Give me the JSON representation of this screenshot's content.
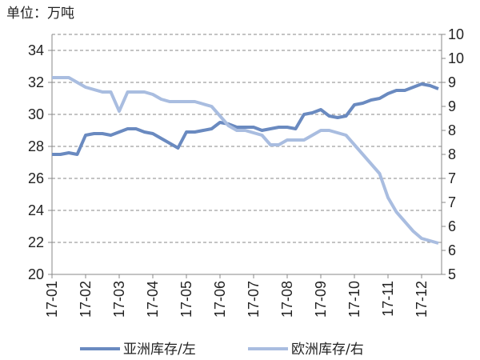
{
  "chart_data": {
    "type": "line",
    "unit_label": "单位：万吨",
    "categories": [
      "17-01",
      null,
      null,
      null,
      "17-02",
      null,
      null,
      null,
      "17-03",
      null,
      null,
      null,
      "17-04",
      null,
      null,
      null,
      "17-05",
      null,
      null,
      null,
      "17-06",
      null,
      null,
      null,
      "17-07",
      null,
      null,
      null,
      "17-08",
      null,
      null,
      null,
      "17-09",
      null,
      null,
      null,
      "17-10",
      null,
      null,
      null,
      "17-11",
      null,
      null,
      null,
      "17-12",
      null,
      null
    ],
    "series": [
      {
        "name": "亚洲库存/左",
        "color": "#6a8ac0",
        "axis": "y",
        "values": [
          27.5,
          27.5,
          27.6,
          27.5,
          28.7,
          28.8,
          28.8,
          28.7,
          28.9,
          29.1,
          29.1,
          28.9,
          28.8,
          28.5,
          28.2,
          27.9,
          28.9,
          28.9,
          29.0,
          29.1,
          29.5,
          29.4,
          29.2,
          29.2,
          29.2,
          29.0,
          29.1,
          29.2,
          29.2,
          29.1,
          30.0,
          30.1,
          30.3,
          29.9,
          29.8,
          29.9,
          30.6,
          30.7,
          30.9,
          31.0,
          31.3,
          31.5,
          31.5,
          31.7,
          31.9,
          31.8,
          31.6
        ]
      },
      {
        "name": "欧洲库存/右",
        "color": "#a9bde0",
        "axis": "y2",
        "values": [
          9.1,
          9.1,
          9.1,
          9.0,
          8.9,
          8.85,
          8.8,
          8.8,
          8.4,
          8.8,
          8.8,
          8.8,
          8.75,
          8.65,
          8.6,
          8.6,
          8.6,
          8.6,
          8.55,
          8.5,
          8.3,
          8.1,
          8.0,
          8.0,
          7.95,
          7.9,
          7.7,
          7.7,
          7.8,
          7.8,
          7.8,
          7.9,
          8.0,
          8.0,
          7.95,
          7.9,
          7.7,
          7.5,
          7.3,
          7.1,
          6.6,
          6.3,
          6.1,
          5.9,
          5.75,
          5.7,
          5.65
        ]
      }
    ],
    "ylim": [
      20,
      35
    ],
    "yticks": [
      20,
      22,
      24,
      26,
      28,
      30,
      32,
      34
    ],
    "y2lim": [
      5,
      10
    ],
    "y2ticks": [
      5,
      {
        "value": 5.5,
        "label": "6"
      },
      6,
      {
        "value": 6.5,
        "label": "7"
      },
      7,
      {
        "value": 7.5,
        "label": "8"
      },
      8,
      {
        "value": 8.5,
        "label": "9"
      },
      9,
      {
        "value": 9.5,
        "label": "10"
      },
      10
    ],
    "grid": true
  }
}
